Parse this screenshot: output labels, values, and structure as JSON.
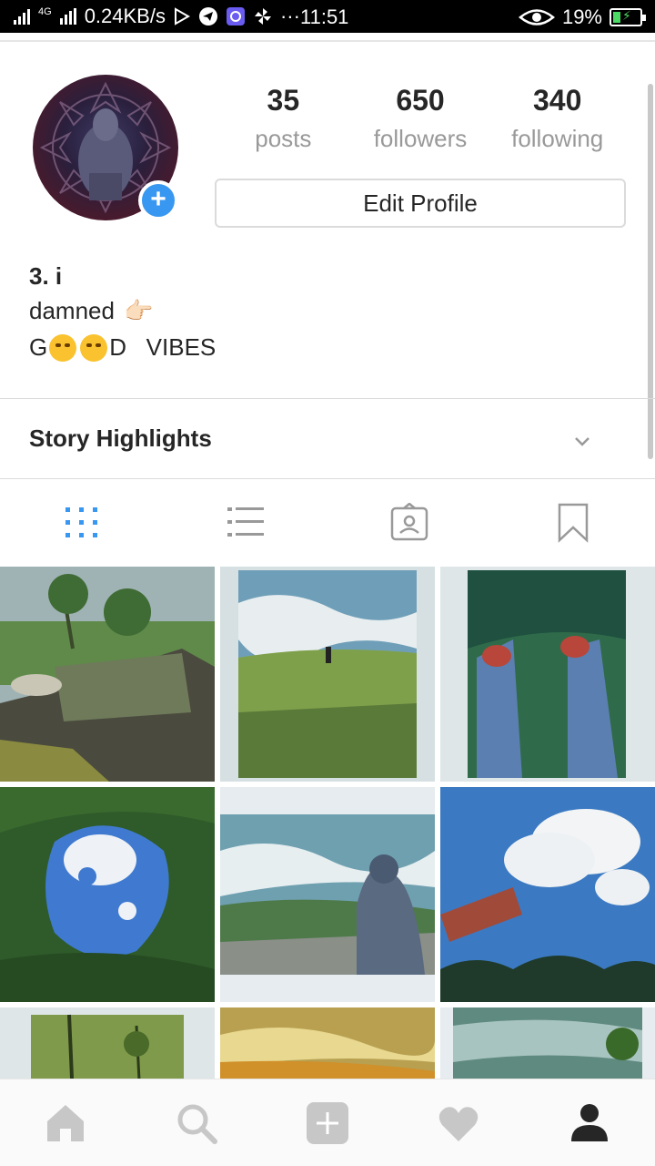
{
  "status_bar": {
    "network": "4G",
    "speed": "0.24KB/s",
    "dots": "···",
    "time": "11:51",
    "battery": "19%"
  },
  "profile": {
    "posts_count": "35",
    "posts_label": "posts",
    "followers_count": "650",
    "followers_label": "followers",
    "following_count": "340",
    "following_label": "following",
    "edit_profile_label": "Edit Profile",
    "add_badge": "+"
  },
  "bio": {
    "name": "3. i",
    "line1": "damned",
    "line1_emoji": "👉🏻",
    "line2_start": "G",
    "line2_end": "D   VIBES"
  },
  "story_highlights": {
    "label": "Story Highlights"
  },
  "colors": {
    "accent": "#3897f0",
    "tab_inactive": "#999999",
    "nav_inactive": "#c7c7c7",
    "nav_active": "#262626"
  },
  "tabs": [
    "grid-view",
    "list-view",
    "tagged",
    "saved"
  ],
  "nav": [
    "home",
    "search",
    "add-post",
    "activity",
    "profile"
  ]
}
